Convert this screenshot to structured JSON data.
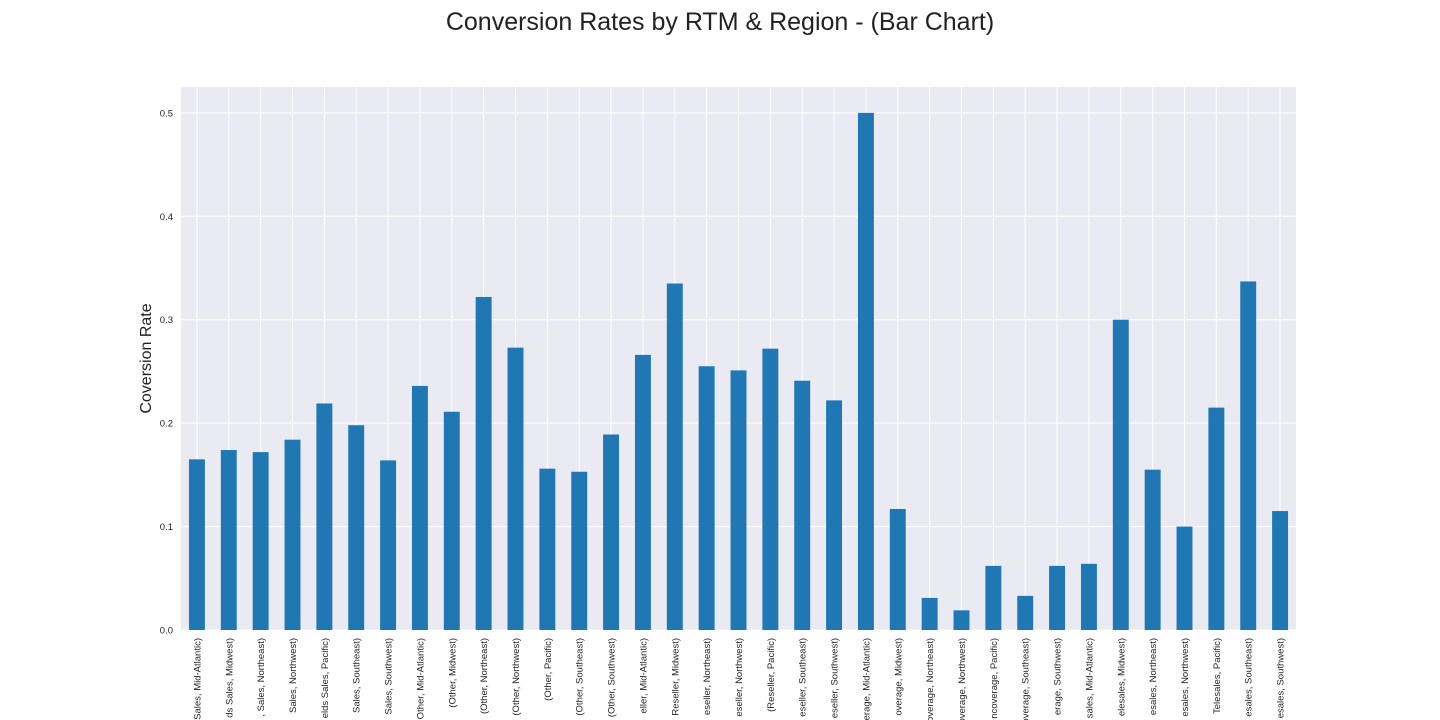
{
  "chart_data": {
    "type": "bar",
    "title": "Conversion Rates by RTM & Region - (Bar Chart)",
    "xlabel": "",
    "ylabel": "Coversion Rate",
    "ylim": [
      0,
      0.525
    ],
    "yticks": [
      0.0,
      0.1,
      0.2,
      0.3,
      0.4,
      0.5
    ],
    "ytick_labels": [
      "0.0",
      "0.1",
      "0.2",
      "0.3",
      "0.4",
      "0.5"
    ],
    "grid": true,
    "legend": false,
    "bar_color": "#1f77b4",
    "background_color": "#eaeaf2",
    "grid_color": "#ffffff",
    "categories": [
      "Sales, Mid-Atlantic)",
      "ds Sales, Midwest)",
      ", Sales, Northeast)",
      "Sales, Northwest)",
      "elds Sales, Pacific)",
      "Sales, Southeast)",
      "Sales, Southwest)",
      "Other, Mid-Atlantic)",
      "(Other, Midwest)",
      "(Other, Northeast)",
      "(Other, Northwest)",
      "(Other, Pacific)",
      "(Other, Southeast)",
      "(Other, Southwest)",
      "eller, Mid-Atlantic)",
      "Reseller, Midwest)",
      "eseller, Northeast)",
      "eseller, Northwest)",
      "(Reseller, Pacific)",
      "eseller, Southeast)",
      "eseller, Southwest)",
      "erage, Mid-Atlantic)",
      "overage, Midwest)",
      "overage, Northeast)",
      "overage, Northwest)",
      "ncoverage, Pacific)",
      "overage, Southeast)",
      "erage, Southwest)",
      "sales, Mid-Atlantic)",
      "elesales, Midwest)",
      "esales, Northeast)",
      "esales, Northwest)",
      "Telesales, Pacific)",
      "esales, Southeast)",
      "esales, Southwest)"
    ],
    "values": [
      0.165,
      0.174,
      0.172,
      0.184,
      0.219,
      0.198,
      0.164,
      0.236,
      0.211,
      0.322,
      0.273,
      0.156,
      0.153,
      0.189,
      0.266,
      0.335,
      0.255,
      0.251,
      0.272,
      0.241,
      0.222,
      0.5,
      0.117,
      0.031,
      0.019,
      0.062,
      0.033,
      0.062,
      0.064,
      0.3,
      0.155,
      0.1,
      0.215,
      0.337,
      0.115
    ]
  }
}
